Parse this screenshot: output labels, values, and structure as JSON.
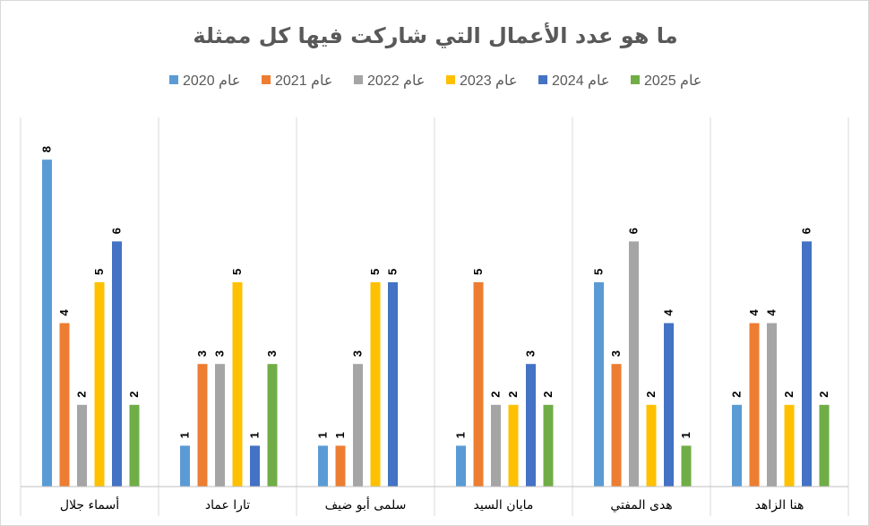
{
  "chart_data": {
    "type": "bar",
    "title": "ما هو عدد الأعمال التي شاركت فيها كل ممثلة",
    "xlabel": "",
    "ylabel": "",
    "ylim": [
      0,
      9
    ],
    "grid": false,
    "legend_position": "top",
    "categories": [
      "أسماء جلال",
      "تارا عماد",
      "سلمى أبو ضيف",
      "مايان السيد",
      "هدى المفتي",
      "هنا الزاهد"
    ],
    "series": [
      {
        "name": "عام 2020",
        "color": "#5B9BD5",
        "values": [
          8,
          1,
          1,
          1,
          5,
          2
        ]
      },
      {
        "name": "عام 2021",
        "color": "#ED7D31",
        "values": [
          4,
          3,
          1,
          5,
          3,
          4
        ]
      },
      {
        "name": "عام 2022",
        "color": "#A5A5A5",
        "values": [
          2,
          3,
          3,
          2,
          6,
          4
        ]
      },
      {
        "name": "عام 2023",
        "color": "#FFC000",
        "values": [
          5,
          5,
          5,
          2,
          2,
          2
        ]
      },
      {
        "name": "عام 2024",
        "color": "#4472C4",
        "values": [
          6,
          1,
          5,
          3,
          4,
          6
        ]
      },
      {
        "name": "عام 2025",
        "color": "#70AD47",
        "values": [
          2,
          3,
          null,
          2,
          1,
          2
        ]
      }
    ]
  }
}
